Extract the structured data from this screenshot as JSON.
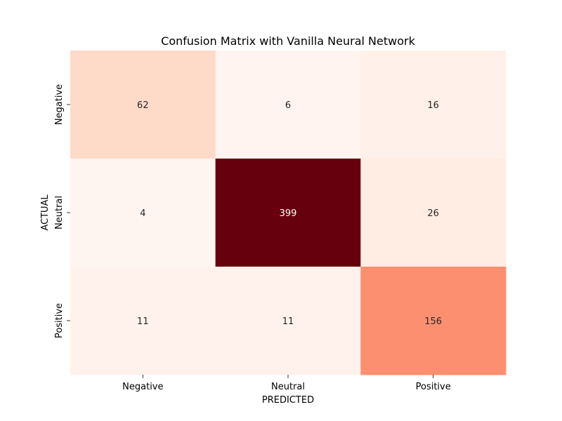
{
  "chart_data": {
    "type": "heatmap",
    "title": "Confusion Matrix with Vanilla Neural Network",
    "xlabel": "PREDICTED",
    "ylabel": "ACTUAL",
    "x_categories": [
      "Negative",
      "Neutral",
      "Positive"
    ],
    "y_categories": [
      "Negative",
      "Neutral",
      "Positive"
    ],
    "values": [
      [
        62,
        6,
        16
      ],
      [
        4,
        399,
        26
      ],
      [
        11,
        11,
        156
      ]
    ],
    "colormap": "Reds",
    "colorbar": false,
    "grid": false
  }
}
